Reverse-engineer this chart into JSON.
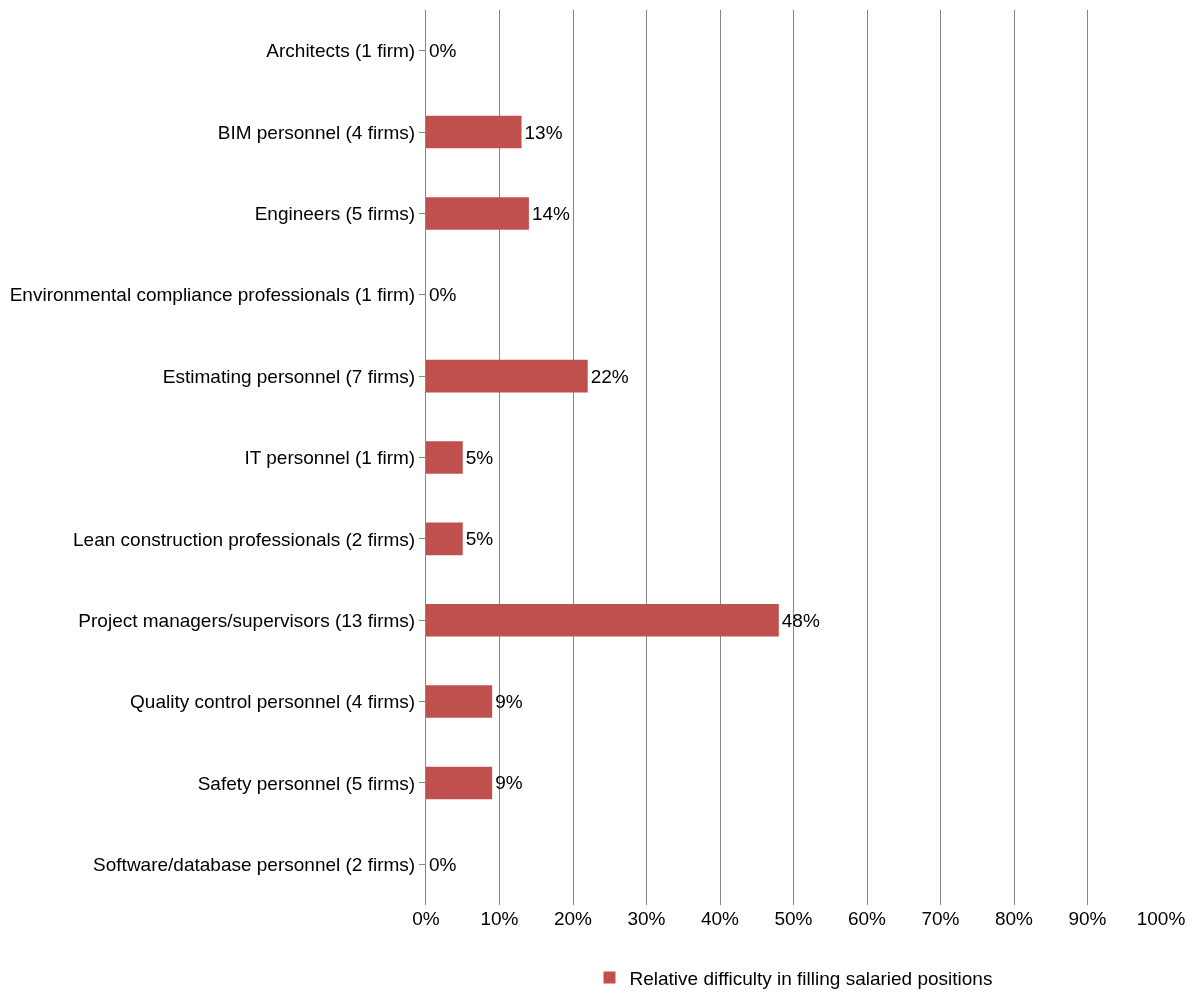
{
  "chart_data": {
    "type": "bar",
    "orientation": "horizontal",
    "categories": [
      "Architects (1 firm)",
      "BIM personnel (4 firms)",
      "Engineers (5 firms)",
      "Environmental compliance professionals (1 firm)",
      "Estimating personnel (7 firms)",
      "IT personnel (1 firm)",
      "Lean construction professionals (2 firms)",
      "Project managers/supervisors (13 firms)",
      "Quality control personnel (4 firms)",
      "Safety personnel (5 firms)",
      "Software/database personnel (2 firms)"
    ],
    "series": [
      {
        "name": "Relative difficulty in filling salaried positions",
        "color": "#c0504d",
        "values": [
          0,
          13,
          14,
          0,
          22,
          5,
          5,
          48,
          9,
          9,
          0
        ],
        "value_labels": [
          "0%",
          "13%",
          "14%",
          "0%",
          "22%",
          "5%",
          "5%",
          "48%",
          "9%",
          "9%",
          "0%"
        ]
      }
    ],
    "xlim": [
      0,
      100
    ],
    "xticks": [
      {
        "value": 0,
        "label": "0%"
      },
      {
        "value": 10,
        "label": "10%"
      },
      {
        "value": 20,
        "label": "20%"
      },
      {
        "value": 30,
        "label": "30%"
      },
      {
        "value": 40,
        "label": "40%"
      },
      {
        "value": 50,
        "label": "50%"
      },
      {
        "value": 60,
        "label": "60%"
      },
      {
        "value": 70,
        "label": "70%"
      },
      {
        "value": 80,
        "label": "80%"
      },
      {
        "value": 90,
        "label": "90%"
      },
      {
        "value": 100,
        "label": "100%"
      }
    ],
    "grid": "x",
    "legend": "bottom"
  }
}
